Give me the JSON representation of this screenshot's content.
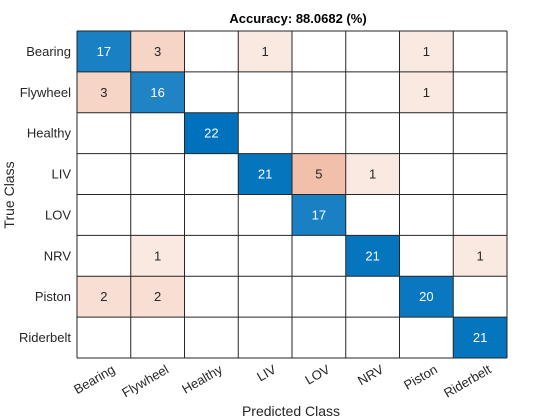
{
  "chart_data": {
    "type": "heatmap",
    "title": "Accuracy: 88.0682 (%)",
    "xlabel": "Predicted Class",
    "ylabel": "True Class",
    "rows": [
      "Bearing",
      "Flywheel",
      "Healthy",
      "LIV",
      "LOV",
      "NRV",
      "Piston",
      "Riderbelt"
    ],
    "columns": [
      "Bearing",
      "Flywheel",
      "Healthy",
      "LIV",
      "LOV",
      "NRV",
      "Piston",
      "Riderbelt"
    ],
    "values": [
      [
        17,
        3,
        0,
        1,
        0,
        0,
        1,
        0
      ],
      [
        3,
        16,
        0,
        0,
        0,
        0,
        1,
        0
      ],
      [
        0,
        0,
        22,
        0,
        0,
        0,
        0,
        0
      ],
      [
        0,
        0,
        0,
        21,
        5,
        1,
        0,
        0
      ],
      [
        0,
        0,
        0,
        0,
        17,
        0,
        0,
        0
      ],
      [
        0,
        1,
        0,
        0,
        0,
        21,
        0,
        1
      ],
      [
        2,
        2,
        0,
        0,
        0,
        0,
        20,
        0
      ],
      [
        0,
        0,
        0,
        0,
        0,
        0,
        0,
        21
      ]
    ],
    "colors": {
      "diagonal": "#0072BD",
      "offdiagonal": "#D95319",
      "grid": "#262626"
    }
  }
}
